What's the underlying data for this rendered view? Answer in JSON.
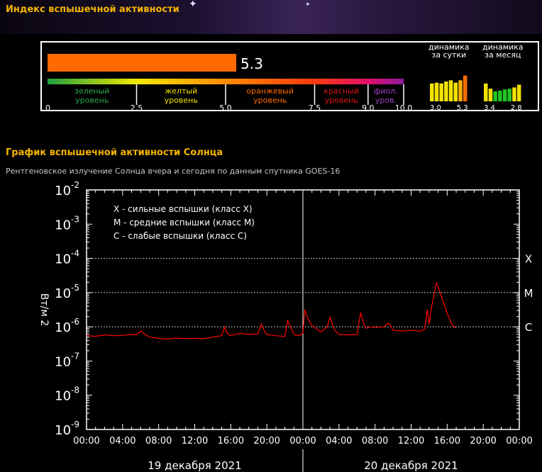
{
  "index": {
    "title": "Индекс вспышечной активности",
    "value": 5.3,
    "value_label": "5.3",
    "max": 10,
    "scale_ticks": [
      "0",
      "2.5",
      "5.0",
      "7.5",
      "9.0",
      "10.0"
    ],
    "levels": [
      {
        "line1": "зеленый",
        "line2": "уровень",
        "color": "#2fa84f"
      },
      {
        "line1": "желтый",
        "line2": "уровень",
        "color": "#f2e200"
      },
      {
        "line1": "оранжевый",
        "line2": "уровень",
        "color": "#ff6a00"
      },
      {
        "line1": "красный",
        "line2": "уровень",
        "color": "#e01818"
      },
      {
        "line1": "фиол.",
        "line2": "уров.",
        "color": "#a040c0"
      }
    ],
    "bar_color": "#ff6a00",
    "daily": {
      "title_line1": "динамика",
      "title_line2": "за сутки",
      "values": [
        0.45,
        0.47,
        0.45,
        0.5,
        0.53,
        0.47,
        0.53,
        0.65
      ],
      "colors": [
        "#f2e200",
        "#f2e200",
        "#f2e200",
        "#f2e200",
        "#f2e200",
        "#f2e200",
        "#ffb000",
        "#ff6a00"
      ],
      "left_label": "3.0",
      "right_label": "5.3"
    },
    "monthly": {
      "title_line1": "динамика",
      "title_line2": "за месяц",
      "values": [
        0.45,
        0.32,
        0.25,
        0.27,
        0.3,
        0.32,
        0.35,
        0.42
      ],
      "colors": [
        "#f2e200",
        "#f2e200",
        "#22c422",
        "#22c422",
        "#22c422",
        "#22c422",
        "#f2e200",
        "#f2e200"
      ],
      "left_label": "3.4",
      "right_label": "2.8"
    }
  },
  "chart_section": {
    "title": "График вспышечной активности Солнца",
    "subtitle": "Рентгеновское излучение Солнца вчера и сегодня по данным спутника GOES-16"
  },
  "chart_data": {
    "type": "line",
    "ylabel": "Вт/м 2",
    "y_scale": "log",
    "ylim": [
      1e-09,
      0.01
    ],
    "y_tick_exponents": [
      "-2",
      "-3",
      "-4",
      "-5",
      "-6",
      "-7",
      "-8",
      "-9"
    ],
    "x_range_hours": [
      0,
      48
    ],
    "x_tick_labels": [
      "00:00",
      "04:00",
      "08:00",
      "12:00",
      "16:00",
      "20:00",
      "00:00",
      "04:00",
      "08:00",
      "12:00",
      "16:00",
      "20:00",
      "00:00"
    ],
    "day_labels": [
      "19 декабря 2021",
      "20 декабря 2021"
    ],
    "class_lines": [
      {
        "label": "X",
        "value": 0.0001
      },
      {
        "label": "M",
        "value": 1e-05
      },
      {
        "label": "C",
        "value": 1e-06
      }
    ],
    "legend": [
      "X - сильные вспышки (класс X)",
      "M - средние вспышки (класс M)",
      "C - слабые вспышки (класс C)"
    ],
    "series": [
      {
        "color": "#ff0000",
        "x": [
          0,
          1,
          2,
          3,
          4,
          5,
          5.5,
          6,
          6.5,
          7,
          8,
          9,
          10,
          11,
          12,
          13,
          14,
          14.5,
          15,
          15.3,
          15.6,
          16,
          17,
          18,
          19,
          19.4,
          19.8,
          20,
          21,
          22,
          22.3,
          22.7,
          23,
          23.5,
          24,
          24.2,
          24.5,
          25,
          26,
          26.7,
          27,
          27.5,
          28,
          29,
          30,
          30.4,
          30.8,
          31,
          31.5,
          32,
          33,
          33.5,
          34,
          35,
          36,
          37,
          37.5,
          37.8,
          38,
          38.2,
          38.5,
          38.8,
          39,
          39.5,
          40,
          40.5,
          41
        ],
        "y": [
          5.5e-07,
          5.3e-07,
          5.8e-07,
          5.5e-07,
          5.6e-07,
          6e-07,
          5.8e-07,
          7.5e-07,
          6e-07,
          5e-07,
          4.6e-07,
          4.4e-07,
          4.7e-07,
          4.5e-07,
          4.6e-07,
          4.5e-07,
          5e-07,
          5.3e-07,
          5.5e-07,
          1e-06,
          6.5e-07,
          5.5e-07,
          6.5e-07,
          6e-07,
          6.2e-07,
          1.2e-06,
          6.8e-07,
          6e-07,
          5.5e-07,
          5.2e-07,
          1.5e-06,
          9e-07,
          6e-07,
          5.5e-07,
          6.5e-07,
          3.2e-06,
          1.8e-06,
          1.1e-06,
          7e-07,
          1e-06,
          1.9e-06,
          8e-07,
          6e-07,
          5.8e-07,
          6e-07,
          2.6e-06,
          1.1e-06,
          9e-07,
          1e-06,
          9.5e-07,
          1e-06,
          1.3e-06,
          8e-07,
          7.5e-07,
          8e-07,
          7.5e-07,
          8.5e-07,
          3.2e-06,
          1.2e-06,
          3e-06,
          8e-06,
          1.9e-05,
          1.5e-05,
          6e-06,
          2.5e-06,
          1.2e-06,
          9e-07
        ]
      }
    ]
  }
}
